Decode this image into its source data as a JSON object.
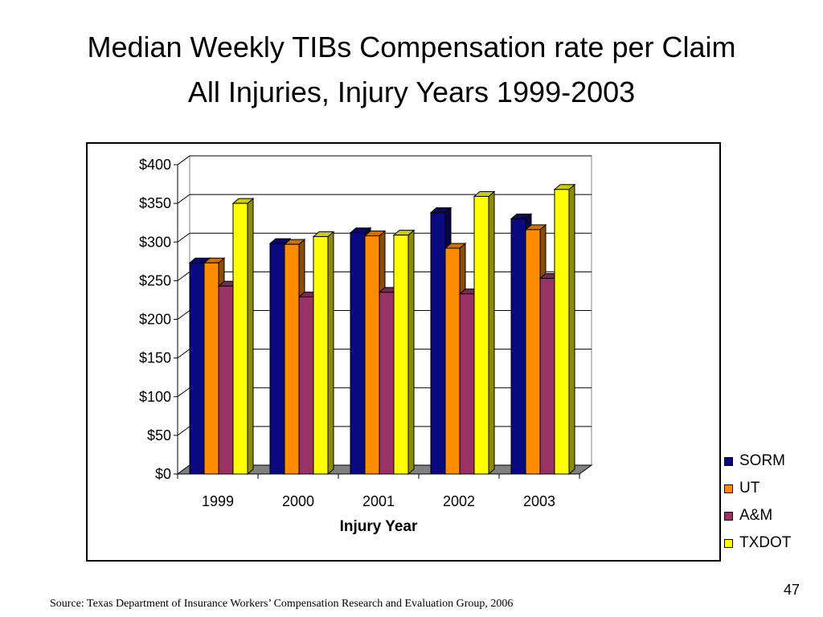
{
  "slide": {
    "title_line1": "Median Weekly TIBs Compensation rate per Claim",
    "title_line2": "All Injuries, Injury Years 1999-2003",
    "source": "Source: Texas Department of Insurance Workers’ Compensation Research and Evaluation Group, 2006",
    "page_number": "47"
  },
  "chart_data": {
    "type": "bar",
    "categories": [
      "1999",
      "2000",
      "2001",
      "2002",
      "2003"
    ],
    "series": [
      {
        "name": "SORM",
        "values": [
          273,
          298,
          312,
          338,
          330
        ],
        "color": "#0a0a80"
      },
      {
        "name": "UT",
        "values": [
          273,
          297,
          308,
          292,
          316
        ],
        "color": "#ff8c00"
      },
      {
        "name": "A&M",
        "values": [
          243,
          229,
          235,
          233,
          253
        ],
        "color": "#993366"
      },
      {
        "name": "TXDOT",
        "values": [
          350,
          307,
          309,
          359,
          368
        ],
        "color": "#ffff00"
      }
    ],
    "xlabel": "Injury Year",
    "ylabel": "",
    "ylim": [
      0,
      400
    ],
    "yticks": [
      0,
      50,
      100,
      150,
      200,
      250,
      300,
      350,
      400
    ],
    "ytick_labels": [
      "$0",
      "$50",
      "$100",
      "$150",
      "$200",
      "$250",
      "$300",
      "$350",
      "$400"
    ],
    "grid": true,
    "legend_position": "right",
    "style": "3d-clustered"
  }
}
